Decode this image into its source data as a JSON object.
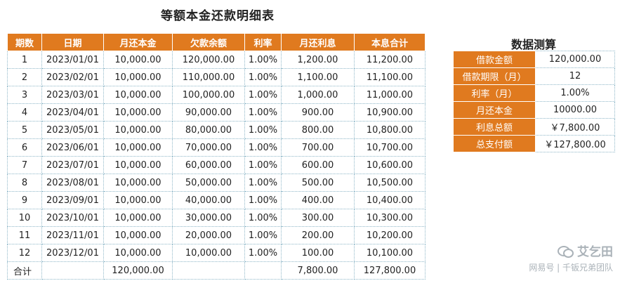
{
  "main_title": "等额本金还款明细表",
  "headers": [
    "期数",
    "日期",
    "月还本金",
    "欠款余额",
    "利率",
    "月还利息",
    "本息合计"
  ],
  "rows": [
    [
      "1",
      "2023/01/01",
      "10,000.00",
      "120,000.00",
      "1.00%",
      "1,200.00",
      "11,200.00"
    ],
    [
      "2",
      "2023/02/01",
      "10,000.00",
      "110,000.00",
      "1.00%",
      "1,100.00",
      "11,100.00"
    ],
    [
      "3",
      "2023/03/01",
      "10,000.00",
      "100,000.00",
      "1.00%",
      "1,000.00",
      "11,000.00"
    ],
    [
      "4",
      "2023/04/01",
      "10,000.00",
      "90,000.00",
      "1.00%",
      "900.00",
      "10,900.00"
    ],
    [
      "5",
      "2023/05/01",
      "10,000.00",
      "80,000.00",
      "1.00%",
      "800.00",
      "10,800.00"
    ],
    [
      "6",
      "2023/06/01",
      "10,000.00",
      "70,000.00",
      "1.00%",
      "700.00",
      "10,700.00"
    ],
    [
      "7",
      "2023/07/01",
      "10,000.00",
      "60,000.00",
      "1.00%",
      "600.00",
      "10,600.00"
    ],
    [
      "8",
      "2023/08/01",
      "10,000.00",
      "50,000.00",
      "1.00%",
      "500.00",
      "10,500.00"
    ],
    [
      "9",
      "2023/09/01",
      "10,000.00",
      "40,000.00",
      "1.00%",
      "400.00",
      "10,400.00"
    ],
    [
      "10",
      "2023/10/01",
      "10,000.00",
      "30,000.00",
      "1.00%",
      "300.00",
      "10,300.00"
    ],
    [
      "11",
      "2023/11/01",
      "10,000.00",
      "20,000.00",
      "1.00%",
      "200.00",
      "10,200.00"
    ],
    [
      "12",
      "2023/12/01",
      "10,000.00",
      "10,000.00",
      "1.00%",
      "100.00",
      "10,100.00"
    ]
  ],
  "totals": [
    "合计",
    "",
    "120,000.00",
    "",
    "",
    "7,800.00",
    "127,800.00"
  ],
  "calc_title": "数据测算",
  "calc": [
    {
      "label": "借款金额",
      "value": "120,000.00"
    },
    {
      "label": "借款期限（月）",
      "value": "12"
    },
    {
      "label": "利率（月）",
      "value": "1.00%"
    },
    {
      "label": "月还本金",
      "value": "10000.00"
    },
    {
      "label": "利息总额",
      "value": "￥7,800.00"
    },
    {
      "label": "总支付额",
      "value": "￥127,800.00"
    }
  ],
  "watermark": {
    "name": "艾乞田",
    "sub": "网易号 | 千钣兄弟团队"
  },
  "colors": {
    "header": "#e07a1f",
    "grid": "#8fb7c8"
  }
}
